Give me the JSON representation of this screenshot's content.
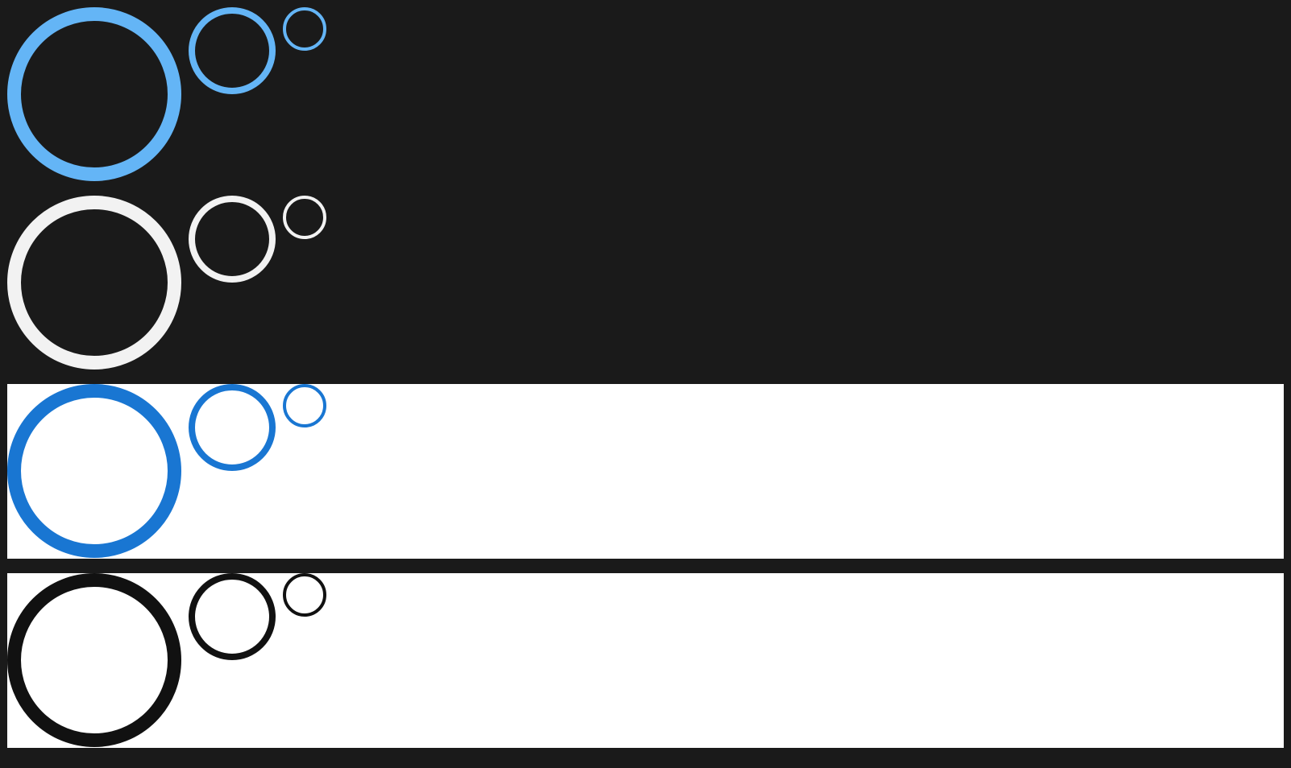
{
  "rows": [
    {
      "theme": "dark",
      "ring_color": "#64b5f6"
    },
    {
      "theme": "dark",
      "ring_color": "#f2f2f2"
    },
    {
      "theme": "light",
      "ring_color": "#1976d2"
    },
    {
      "theme": "light",
      "ring_color": "#111111"
    }
  ],
  "colors": {
    "page_background": "#1a1a1a",
    "light_background": "#ffffff"
  }
}
